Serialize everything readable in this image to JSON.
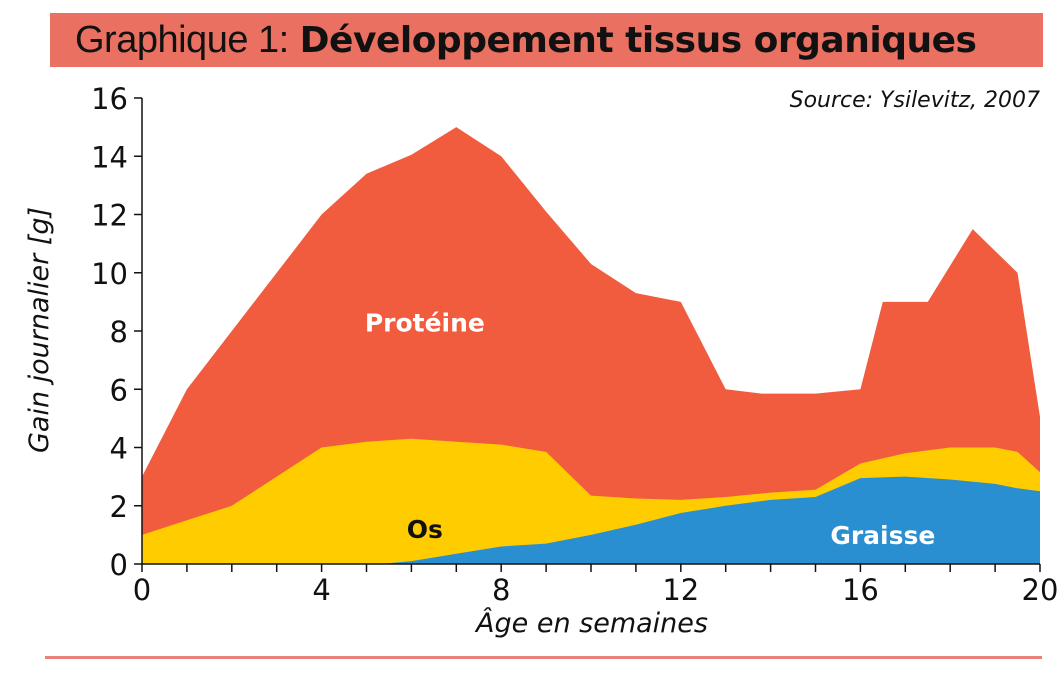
{
  "header": {
    "title_prefix": "Graphique 1:",
    "title_main": "Développement tissus organiques",
    "bar_color": "#EA7061"
  },
  "chart_data": {
    "type": "area",
    "stacked": false,
    "title": "Graphique 1: Développement tissus organiques",
    "source": "Source: Ysilevitz, 2007",
    "xlabel": "Âge en semaines",
    "ylabel": "Gain journalier [g]",
    "xlim": [
      0,
      20
    ],
    "ylim": [
      0,
      16
    ],
    "x_ticks": [
      0,
      4,
      8,
      12,
      16,
      20
    ],
    "x_tick_labels": [
      "0",
      "4",
      "8",
      "12",
      "16",
      "20"
    ],
    "x_minor_step": 1,
    "y_ticks": [
      0,
      2,
      4,
      6,
      8,
      10,
      12,
      14,
      16
    ],
    "y_tick_labels": [
      "0",
      "2",
      "4",
      "6",
      "8",
      "10",
      "12",
      "14",
      "16"
    ],
    "grid": false,
    "series": [
      {
        "name": "Protéine",
        "color": "#F25C3E",
        "label_color": "#FFFFFF",
        "label_at": [
          6.3,
          8.3
        ],
        "points": [
          [
            0,
            3.0
          ],
          [
            1,
            6.0
          ],
          [
            2,
            8.0
          ],
          [
            3,
            10.0
          ],
          [
            4,
            12.0
          ],
          [
            5,
            13.4
          ],
          [
            6,
            14.05
          ],
          [
            7,
            15.0
          ],
          [
            8,
            14.0
          ],
          [
            9,
            12.1
          ],
          [
            10,
            10.3
          ],
          [
            11,
            9.3
          ],
          [
            12,
            9.0
          ],
          [
            13,
            6.0
          ],
          [
            13.8,
            5.85
          ],
          [
            15,
            5.85
          ],
          [
            16,
            6.0
          ],
          [
            16.5,
            9.0
          ],
          [
            17.5,
            9.0
          ],
          [
            18.5,
            11.5
          ],
          [
            19.5,
            10.0
          ],
          [
            20,
            5.05
          ]
        ]
      },
      {
        "name": "Os",
        "color": "#FFCC00",
        "label_color": "#111111",
        "label_at": [
          6.3,
          1.2
        ],
        "points": [
          [
            0,
            1.0
          ],
          [
            1,
            1.5
          ],
          [
            2,
            2.0
          ],
          [
            3,
            3.0
          ],
          [
            4,
            4.0
          ],
          [
            5,
            4.2
          ],
          [
            6,
            4.3
          ],
          [
            7,
            4.2
          ],
          [
            8,
            4.1
          ],
          [
            9,
            3.85
          ],
          [
            10,
            2.35
          ],
          [
            11,
            2.25
          ],
          [
            12,
            2.2
          ],
          [
            13,
            2.3
          ],
          [
            14,
            2.45
          ],
          [
            15,
            2.55
          ],
          [
            16,
            3.45
          ],
          [
            17,
            3.8
          ],
          [
            18,
            4.0
          ],
          [
            19,
            4.0
          ],
          [
            19.5,
            3.85
          ],
          [
            20,
            3.15
          ]
        ]
      },
      {
        "name": "Graisse",
        "color": "#2A8FD0",
        "label_color": "#FFFFFF",
        "label_at": [
          16.5,
          1.0
        ],
        "points": [
          [
            0,
            0
          ],
          [
            5.3,
            0
          ],
          [
            6,
            0.1
          ],
          [
            7,
            0.35
          ],
          [
            8,
            0.6
          ],
          [
            9,
            0.7
          ],
          [
            10,
            1.0
          ],
          [
            11,
            1.35
          ],
          [
            12,
            1.75
          ],
          [
            13,
            2.0
          ],
          [
            14,
            2.2
          ],
          [
            15,
            2.3
          ],
          [
            16,
            2.95
          ],
          [
            17,
            3.0
          ],
          [
            18,
            2.9
          ],
          [
            19,
            2.75
          ],
          [
            19.5,
            2.6
          ],
          [
            20,
            2.5
          ]
        ]
      }
    ]
  }
}
